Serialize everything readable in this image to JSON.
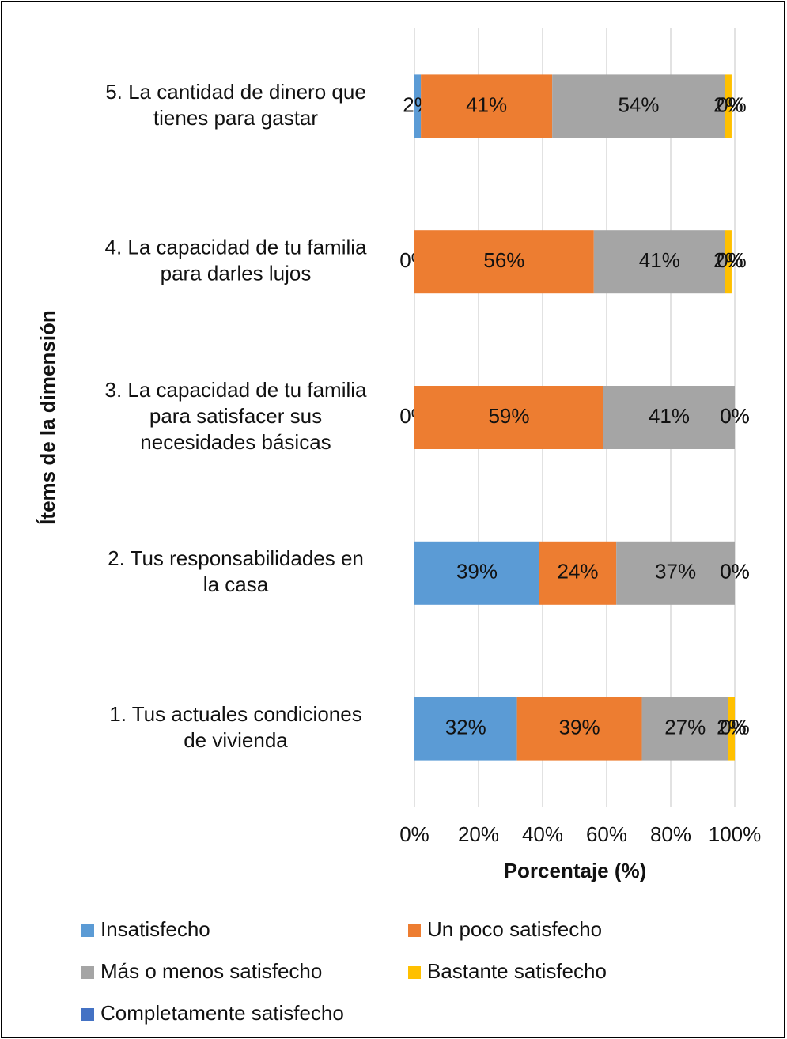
{
  "chart_data": {
    "type": "stacked-barh",
    "categories": [
      [
        "1. Tus actuales condiciones",
        "de vivienda"
      ],
      [
        "2. Tus responsabilidades en",
        "la casa"
      ],
      [
        "3. La capacidad de tu familia",
        "para satisfacer sus",
        "necesidades básicas"
      ],
      [
        "4. La capacidad de tu familia",
        "para darles lujos"
      ],
      [
        "5. La cantidad de dinero que",
        "tienes para gastar"
      ]
    ],
    "series": [
      {
        "name": "Insatisfecho",
        "color": "#5b9bd5",
        "values": [
          32,
          39,
          0,
          0,
          2
        ],
        "value_labels": [
          "32%",
          "39%",
          "0%",
          "0%",
          "2%"
        ]
      },
      {
        "name": "Un poco satisfecho",
        "color": "#ed7d31",
        "values": [
          39,
          24,
          59,
          56,
          41
        ],
        "value_labels": [
          "39%",
          "24%",
          "59%",
          "56%",
          "41%"
        ]
      },
      {
        "name": "Más o menos satisfecho",
        "color": "#a5a5a5",
        "values": [
          27,
          37,
          41,
          41,
          54
        ],
        "value_labels": [
          "27%",
          "37%",
          "41%",
          "41%",
          "54%"
        ]
      },
      {
        "name": "Bastante satisfecho",
        "color": "#ffc000",
        "values": [
          2,
          0,
          0,
          2,
          2
        ],
        "value_labels": [
          "2%",
          "0%",
          "0%",
          "2%",
          "2%"
        ]
      },
      {
        "name": "Completamente satisfecho",
        "color": "#4472c4",
        "values": [
          0,
          0,
          0,
          0,
          0
        ],
        "value_labels": [
          "0%",
          "0%",
          "0%",
          "0%",
          "0%"
        ]
      }
    ],
    "xlim": [
      0,
      100
    ],
    "xticks": [
      {
        "value": 0,
        "label": "0%"
      },
      {
        "value": 20,
        "label": "20%"
      },
      {
        "value": 40,
        "label": "40%"
      },
      {
        "value": 60,
        "label": "60%"
      },
      {
        "value": 80,
        "label": "80%"
      },
      {
        "value": 100,
        "label": "100%"
      }
    ],
    "x_label": "Porcentaje (%)",
    "y_label": "Ítems de la dimensión",
    "grid": true,
    "legend": "bottom"
  }
}
